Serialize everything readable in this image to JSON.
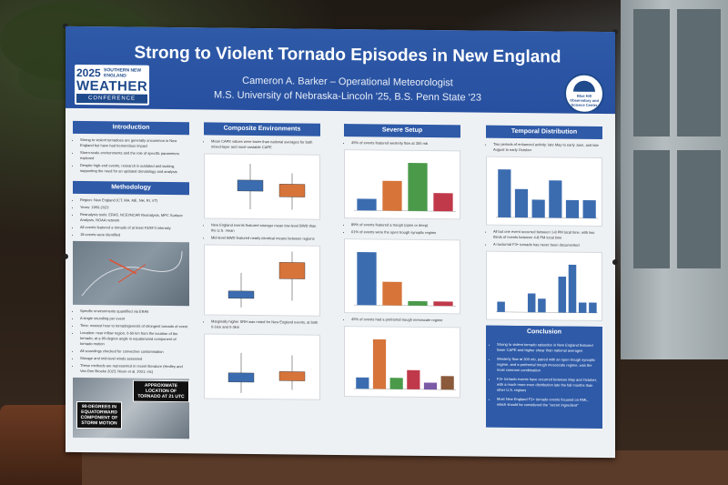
{
  "poster": {
    "title": "Strong to Violent Tornado Episodes in New England",
    "author": "Cameron A. Barker – Operational Meteorologist",
    "affiliation": "M.S. University of Nebraska-Lincoln '25, B.S. Penn State '23"
  },
  "conference_logo": {
    "year": "2025",
    "region": "SOUTHERN NEW ENGLAND",
    "word": "WEATHER",
    "subword": "CONFERENCE"
  },
  "observatory_logo": {
    "name": "Blue Hill Observatory and Science Center"
  },
  "sections": {
    "introduction": {
      "heading": "Introduction",
      "bullets": [
        "Strong to violent tornadoes are generally uncommon in New England but have had tremendous impact",
        "Storm-scale environments and the role of specific parameters explored",
        "Despite high-end events, research is outdated and lacking, supporting the need for an updated climatology and analysis"
      ]
    },
    "methodology": {
      "heading": "Methodology",
      "bullets": [
        "Region: New England (CT, MA, ME, NH, RI, VT)",
        "Years: 1950-2023",
        "Reanalysis tools: ERA5, NCEI/NCAR Reanalysis, MPC Surface Analysis, NOAA network",
        "All events featured a tornado of at least F3/EF3 intensity",
        "18 events were identified"
      ],
      "bullets_lower": [
        "Specific environments quantified via ERA5",
        "A single sounding per event",
        "Time: nearest hour to tornadogenesis of strongest tornado of event",
        "Location: near inflow region, 0-50 km from the location of the tornado, at a 90-degree angle in equatorward component of tornado motion",
        "All soundings checked for convective contamination",
        "Storage and mid-level winds assessed",
        "These methods are represented in recent literature (Hedley and Van Den Broeke 2023; Nixon et al. 2021; etc)"
      ],
      "callout_left": "90-DEGREES IN EQUATORWARD COMPONENT OF STORM MOTION",
      "callout_right": "APPROXIMATE LOCATION OF TORNADO AT 21 UTC"
    },
    "composite": {
      "heading": "Composite Environments",
      "text1": "Mean CAPE values were lower than national averages for both mixed-layer and most-unstable CAPE",
      "text2": "New England events featured stronger mean low-level BWD than the U.S. mean",
      "text3": "Mid-level BWD featured nearly identical means between regions",
      "text4": "Marginally higher SRH was noted for New England events, at both 0-1km and 0-3km"
    },
    "severe": {
      "heading": "Severe Setup",
      "text1": "45% of events featured westerly flow at 300 mb",
      "text2": "89% of events featured a trough (open or deep)",
      "text3": "61% of events were the open trough synoptic regime",
      "text4": "45% of events had a prefrontal trough mesoscale regime"
    },
    "temporal": {
      "heading": "Temporal Distribution",
      "text1": "Two periods of enhanced activity: late May to early June, and late August to early October",
      "text2": "All but one event occurred between 1-8 PM local time, with two thirds of events between 4-8 PM local time",
      "text3": "A nocturnal F3+ tornado has never been documented"
    },
    "conclusion": {
      "heading": "Conclusion",
      "bullets": [
        "Strong to violent tornado episodes in New England featured lower CAPE and higher shear than national averages",
        "Westerly flow at 300 mb, paired with an open trough synoptic regime, and a prefrontal trough mesoscale regime, was the most common combination",
        "F3+ tornado events have occurred between May and October, with a much more even distribution late the fall months than other U.S. regions",
        "Most New England F3+ tornado events focused on RML, which should be considered the \"secret ingredient\""
      ]
    }
  },
  "chart_data": [
    {
      "type": "bar",
      "title": "",
      "values": [
        0.9,
        2.3,
        3.7,
        1.4
      ],
      "colors": [
        "#3b6cb0",
        "#d6743a",
        "#4a9a4a",
        "#c0394a"
      ]
    },
    {
      "type": "bar",
      "title": "",
      "values": [
        3.6,
        1.6,
        0.3,
        0.3
      ],
      "colors": [
        "#3b6cb0",
        "#d6743a",
        "#4a9a4a",
        "#c0394a"
      ]
    },
    {
      "type": "bar",
      "title": "",
      "values": [
        1.0,
        4.4,
        1.0,
        1.7,
        0.6,
        1.2
      ],
      "colors": [
        "#3b6cb0",
        "#d6743a",
        "#4a9a4a",
        "#c0394a",
        "#7b5aa6",
        "#8a5a3a"
      ]
    },
    {
      "type": "bar",
      "title": "",
      "values": [
        3.2,
        1.9,
        1.2,
        2.5,
        1.2,
        1.2
      ],
      "colors": [
        "#3b6cb0"
      ]
    },
    {
      "type": "bar",
      "title": "",
      "values": [
        0.6,
        0,
        0,
        1.1,
        0.8,
        0,
        2.1,
        2.8,
        0.6,
        0.6
      ],
      "colors": [
        "#3b6cb0"
      ]
    }
  ],
  "colors": {
    "header_blue": "#2e5aa8",
    "poster_bg": "#eef1f4",
    "box_blue": "#3b6cb0",
    "box_orange": "#d6743a"
  }
}
